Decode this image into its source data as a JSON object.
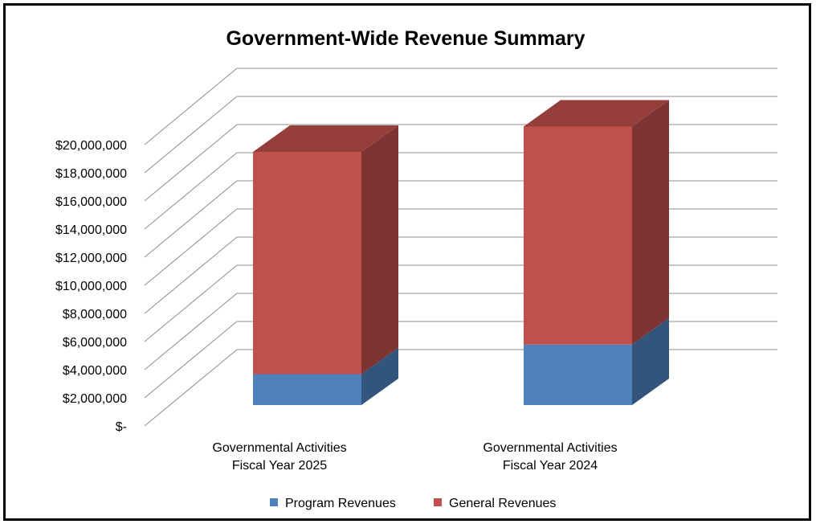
{
  "chart_data": {
    "type": "bar",
    "stacked": true,
    "three_d": true,
    "title": "Government-Wide Revenue Summary",
    "categories": [
      [
        "Governmental Activities",
        "Fiscal Year 2025"
      ],
      [
        "Governmental Activities",
        "Fiscal Year 2024"
      ]
    ],
    "series": [
      {
        "name": "Program Revenues",
        "values": [
          2200000,
          4300000
        ],
        "color": "#4F81BD"
      },
      {
        "name": "General Revenues",
        "values": [
          15800000,
          15500000
        ],
        "color": "#C0504D"
      }
    ],
    "yticks": [
      "$-",
      "$2,000,000",
      "$4,000,000",
      "$6,000,000",
      "$8,000,000",
      "$10,000,000",
      "$12,000,000",
      "$14,000,000",
      "$16,000,000",
      "$18,000,000",
      "$20,000,000"
    ],
    "ylim": [
      0,
      20000000
    ],
    "grid": true,
    "legend": "bottom"
  }
}
